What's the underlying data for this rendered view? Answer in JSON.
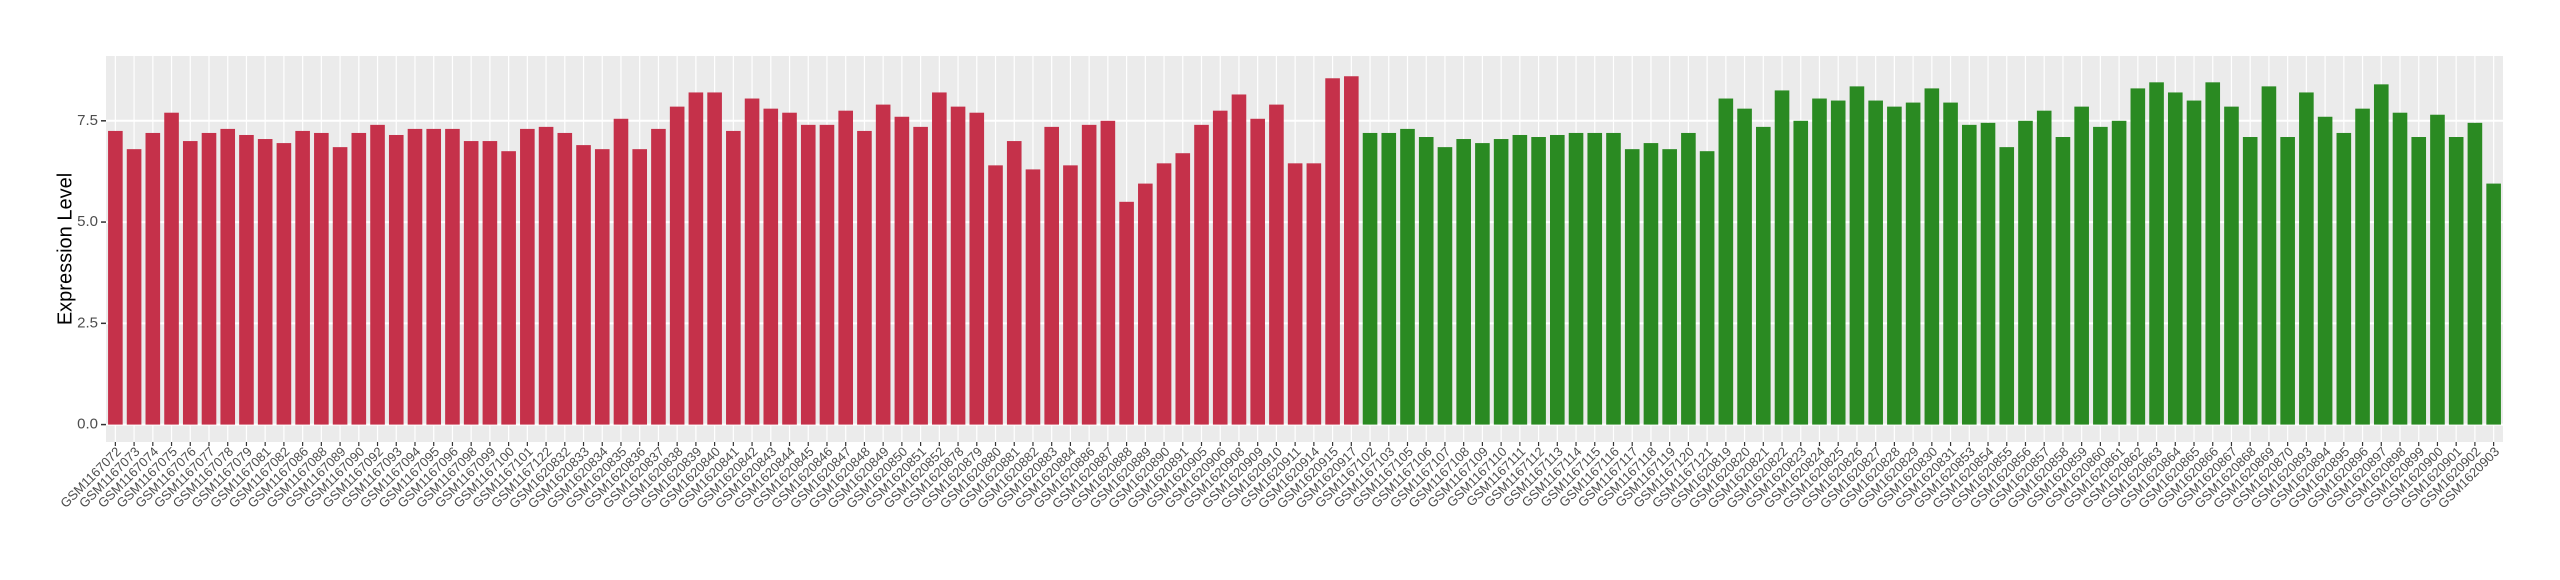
{
  "chart_data": {
    "type": "bar",
    "y_label": "Expression Level",
    "categories": [
      "GSM1167072",
      "GSM1167073",
      "GSM1167074",
      "GSM1167075",
      "GSM1167076",
      "GSM1167077",
      "GSM1167078",
      "GSM1167079",
      "GSM1167081",
      "GSM1167082",
      "GSM1167086",
      "GSM1167088",
      "GSM1167089",
      "GSM1167090",
      "GSM1167092",
      "GSM1167093",
      "GSM1167094",
      "GSM1167095",
      "GSM1167096",
      "GSM1167098",
      "GSM1167099",
      "GSM1167100",
      "GSM1167101",
      "GSM1167122",
      "GSM1620832",
      "GSM1620833",
      "GSM1620834",
      "GSM1620835",
      "GSM1620836",
      "GSM1620837",
      "GSM1620838",
      "GSM1620839",
      "GSM1620840",
      "GSM1620841",
      "GSM1620842",
      "GSM1620843",
      "GSM1620844",
      "GSM1620845",
      "GSM1620846",
      "GSM1620847",
      "GSM1620848",
      "GSM1620849",
      "GSM1620850",
      "GSM1620851",
      "GSM1620852",
      "GSM1620878",
      "GSM1620879",
      "GSM1620880",
      "GSM1620881",
      "GSM1620882",
      "GSM1620883",
      "GSM1620884",
      "GSM1620886",
      "GSM1620887",
      "GSM1620888",
      "GSM1620889",
      "GSM1620890",
      "GSM1620891",
      "GSM1620905",
      "GSM1620906",
      "GSM1620908",
      "GSM1620909",
      "GSM1620910",
      "GSM1620911",
      "GSM1620914",
      "GSM1620915",
      "GSM1620917",
      "GSM1167102",
      "GSM1167103",
      "GSM1167105",
      "GSM1167106",
      "GSM1167107",
      "GSM1167108",
      "GSM1167109",
      "GSM1167110",
      "GSM1167111",
      "GSM1167112",
      "GSM1167113",
      "GSM1167114",
      "GSM1167115",
      "GSM1167116",
      "GSM1167117",
      "GSM1167118",
      "GSM1167119",
      "GSM1167120",
      "GSM1167121",
      "GSM1620819",
      "GSM1620820",
      "GSM1620821",
      "GSM1620822",
      "GSM1620823",
      "GSM1620824",
      "GSM1620825",
      "GSM1620826",
      "GSM1620827",
      "GSM1620828",
      "GSM1620829",
      "GSM1620830",
      "GSM1620831",
      "GSM1620853",
      "GSM1620854",
      "GSM1620855",
      "GSM1620856",
      "GSM1620857",
      "GSM1620858",
      "GSM1620859",
      "GSM1620860",
      "GSM1620861",
      "GSM1620862",
      "GSM1620863",
      "GSM1620864",
      "GSM1620865",
      "GSM1620866",
      "GSM1620867",
      "GSM1620868",
      "GSM1620869",
      "GSM1620870",
      "GSM1620893",
      "GSM1620894",
      "GSM1620895",
      "GSM1620896",
      "GSM1620897",
      "GSM1620898",
      "GSM1620899",
      "GSM1620900",
      "GSM1620901",
      "GSM1620902",
      "GSM1620903"
    ],
    "series": [
      {
        "color": "#c5314a",
        "values": [
          7.25,
          6.8,
          7.2,
          7.7,
          7.0,
          7.2,
          7.3,
          7.15,
          7.05,
          6.95,
          7.25,
          7.2,
          6.85,
          7.2,
          7.4,
          7.15,
          7.3,
          7.3,
          7.3,
          7.0,
          7.0,
          6.75,
          7.3,
          7.35,
          7.2,
          6.9,
          6.8,
          7.55,
          6.8,
          7.3,
          7.85,
          8.2,
          8.2,
          7.25,
          8.05,
          7.8,
          7.7,
          7.4,
          7.4,
          7.75,
          7.25,
          7.9,
          7.6,
          7.35,
          8.2,
          7.85,
          7.7,
          6.4,
          7.0,
          6.3,
          7.35,
          6.4,
          7.4,
          7.5,
          5.5,
          5.95,
          6.45,
          6.7,
          7.4,
          7.75,
          8.15,
          7.55,
          7.9,
          6.45,
          6.45,
          8.55,
          8.6,
          null,
          null,
          null,
          null,
          null,
          null,
          null,
          null,
          null,
          null,
          null,
          null,
          null,
          null,
          null,
          null,
          null,
          null,
          null,
          null,
          null,
          null,
          null,
          null,
          null,
          null,
          null,
          null,
          null,
          null,
          null,
          null,
          null,
          null,
          null,
          null,
          null,
          null,
          null,
          null,
          null,
          null,
          null,
          null,
          null,
          null,
          null,
          null,
          null,
          null,
          null,
          null,
          null,
          null,
          null,
          null,
          null,
          null,
          null,
          null,
          null
        ]
      },
      {
        "color": "#2a8a22",
        "values": [
          null,
          null,
          null,
          null,
          null,
          null,
          null,
          null,
          null,
          null,
          null,
          null,
          null,
          null,
          null,
          null,
          null,
          null,
          null,
          null,
          null,
          null,
          null,
          null,
          null,
          null,
          null,
          null,
          null,
          null,
          null,
          null,
          null,
          null,
          null,
          null,
          null,
          null,
          null,
          null,
          null,
          null,
          null,
          null,
          null,
          null,
          null,
          null,
          null,
          null,
          null,
          null,
          null,
          null,
          null,
          null,
          null,
          null,
          null,
          null,
          null,
          null,
          null,
          null,
          null,
          null,
          null,
          7.2,
          7.2,
          7.3,
          7.1,
          6.85,
          7.05,
          6.95,
          7.05,
          7.15,
          7.1,
          7.15,
          7.2,
          7.2,
          7.2,
          6.8,
          6.95,
          6.8,
          7.2,
          6.75,
          8.05,
          7.8,
          7.35,
          8.25,
          7.5,
          8.05,
          8.0,
          8.35,
          8.0,
          7.85,
          7.95,
          8.3,
          7.95,
          7.4,
          7.45,
          6.85,
          7.5,
          7.75,
          7.1,
          7.85,
          7.35,
          7.5,
          8.3,
          8.45,
          8.2,
          8.0,
          8.45,
          7.85,
          7.1,
          8.35,
          7.1,
          8.2,
          7.6,
          7.2,
          7.8,
          8.4,
          7.7,
          7.1,
          7.65,
          7.1,
          7.45,
          5.95
        ]
      }
    ],
    "ylim": [
      -0.43,
      9.1
    ],
    "yticks": [
      {
        "value": 0,
        "label": "0.0"
      },
      {
        "value": 2.5,
        "label": "2.5"
      },
      {
        "value": 5,
        "label": "5.0"
      },
      {
        "value": 7.5,
        "label": "7.5"
      }
    ],
    "grid": true
  }
}
